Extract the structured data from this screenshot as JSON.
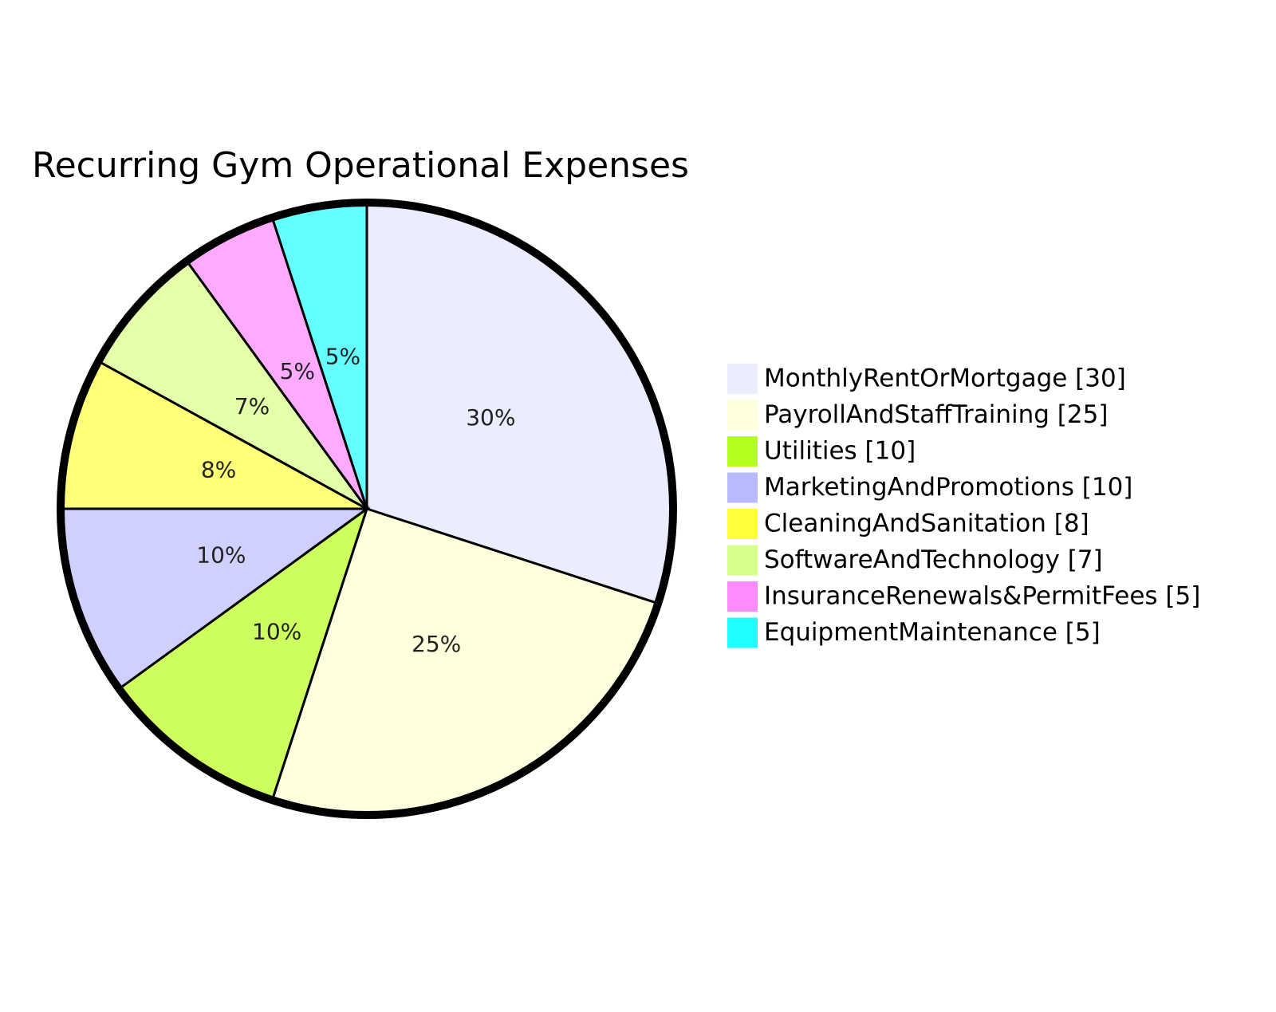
{
  "chart_data": {
    "type": "pie",
    "title": "Recurring Gym Operational Expenses",
    "slices": [
      {
        "label": "MonthlyRentOrMortgage",
        "value": 30,
        "percent_label": "30%",
        "color": "#ececff",
        "legend_color": "#ececff"
      },
      {
        "label": "PayrollAndStaffTraining",
        "value": 25,
        "percent_label": "25%",
        "color": "#ffffde",
        "legend_color": "#ffffde"
      },
      {
        "label": "Utilities",
        "value": 10,
        "percent_label": "10%",
        "color": "#cdff5e",
        "legend_color": "#b4ff1e"
      },
      {
        "label": "MarketingAndPromotions",
        "value": 10,
        "percent_label": "10%",
        "color": "#d0d0ff",
        "legend_color": "#b9b9ff"
      },
      {
        "label": "CleaningAndSanitation",
        "value": 8,
        "percent_label": "8%",
        "color": "#ffff78",
        "legend_color": "#ffff3c"
      },
      {
        "label": "SoftwareAndTechnology",
        "value": 7,
        "percent_label": "7%",
        "color": "#e3ffaa",
        "legend_color": "#d7ff8c"
      },
      {
        "label": "InsuranceRenewals&PermitFees",
        "value": 5,
        "percent_label": "5%",
        "color": "#ffaaff",
        "legend_color": "#ff8cff"
      },
      {
        "label": "EquipmentMaintenance",
        "value": 5,
        "percent_label": "5%",
        "color": "#64ffff",
        "legend_color": "#1effff"
      }
    ],
    "legend": {
      "placement": "right",
      "items": [
        "MonthlyRentOrMortgage [30]",
        "PayrollAndStaffTraining [25]",
        "Utilities [10]",
        "MarketingAndPromotions [10]",
        "CleaningAndSanitation [8]",
        "SoftwareAndTechnology [7]",
        "InsuranceRenewals&PermitFees [5]",
        "EquipmentMaintenance [5]"
      ]
    }
  }
}
